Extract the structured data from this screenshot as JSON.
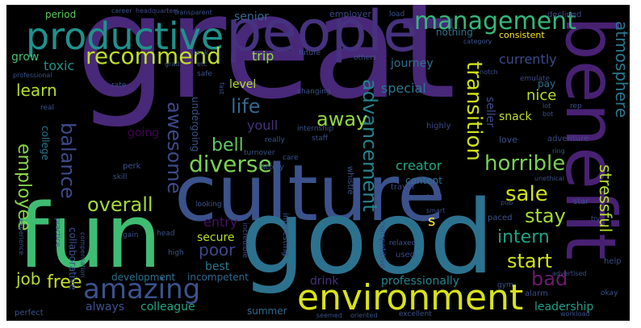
{
  "word_cloud": {
    "background": "#000000",
    "words": [
      {
        "id": "great",
        "text": "great",
        "color": "#482878"
      },
      {
        "id": "culture",
        "text": "culture",
        "color": "#3b528b"
      },
      {
        "id": "good",
        "text": "good",
        "color": "#2c728e"
      },
      {
        "id": "fun",
        "text": "fun",
        "color": "#3fbc73"
      },
      {
        "id": "benefit",
        "text": "benefit",
        "color": "#482173"
      },
      {
        "id": "people",
        "text": "people",
        "color": "#46327e"
      },
      {
        "id": "productive",
        "text": "productive",
        "color": "#21918c"
      },
      {
        "id": "environment",
        "text": "environment",
        "color": "#d8e219"
      },
      {
        "id": "amazing",
        "text": "amazing",
        "color": "#3b528b"
      },
      {
        "id": "management",
        "text": "management",
        "color": "#35b779"
      },
      {
        "id": "recommend",
        "text": "recommend",
        "color": "#c0df25"
      },
      {
        "id": "diverse",
        "text": "diverse",
        "color": "#7ad151"
      },
      {
        "id": "advancement",
        "text": "advancement",
        "color": "#26828e"
      },
      {
        "id": "transition",
        "text": "transition",
        "color": "#d0e11c"
      },
      {
        "id": "atmosphere",
        "text": "atmosphere",
        "color": "#2a788e"
      },
      {
        "id": "stressful",
        "text": "stressful",
        "color": "#b5de2b"
      },
      {
        "id": "horrible",
        "text": "horrible",
        "color": "#7ad151"
      },
      {
        "id": "awesome",
        "text": "awesome",
        "color": "#3e4989"
      },
      {
        "id": "balance",
        "text": "balance",
        "color": "#3e4a89"
      },
      {
        "id": "employee",
        "text": "employee",
        "color": "#86d549"
      },
      {
        "id": "overall",
        "text": "overall",
        "color": "#a2da37"
      },
      {
        "id": "sale",
        "text": "sale",
        "color": "#d2e21b"
      },
      {
        "id": "stay",
        "text": "stay",
        "color": "#a5db36"
      },
      {
        "id": "intern",
        "text": "intern",
        "color": "#1fa187"
      },
      {
        "id": "start",
        "text": "start",
        "color": "#d2e21b"
      },
      {
        "id": "bad",
        "text": "bad",
        "color": "#6b1a6c"
      },
      {
        "id": "away",
        "text": "away",
        "color": "#95d840"
      },
      {
        "id": "life",
        "text": "life",
        "color": "#31688e"
      },
      {
        "id": "bell",
        "text": "bell",
        "color": "#5ec962"
      },
      {
        "id": "learn",
        "text": "learn",
        "color": "#b5de2b"
      },
      {
        "id": "free",
        "text": "free",
        "color": "#c8e020"
      },
      {
        "id": "job",
        "text": "job",
        "color": "#b8de29"
      },
      {
        "id": "poor",
        "text": "poor",
        "color": "#3e4989"
      },
      {
        "id": "trip",
        "text": "trip",
        "color": "#90d743"
      },
      {
        "id": "journey",
        "text": "journey",
        "color": "#2c728e"
      },
      {
        "id": "currently",
        "text": "currently",
        "color": "#3e4989"
      },
      {
        "id": "special",
        "text": "special",
        "color": "#2a788e"
      },
      {
        "id": "nice",
        "text": "nice",
        "color": "#b5de2b"
      },
      {
        "id": "snack",
        "text": "snack",
        "color": "#bddf26"
      },
      {
        "id": "youll",
        "text": "youll",
        "color": "#46327e"
      },
      {
        "id": "creator",
        "text": "creator",
        "color": "#22a884"
      },
      {
        "id": "professionally",
        "text": "professionally",
        "color": "#25848e"
      },
      {
        "id": "leadership",
        "text": "leadership",
        "color": "#1f9e89"
      },
      {
        "id": "drink",
        "text": "drink",
        "color": "#46327e"
      },
      {
        "id": "summer",
        "text": "summer",
        "color": "#31688e"
      },
      {
        "id": "colleague",
        "text": "colleague",
        "color": "#20a486"
      },
      {
        "id": "always",
        "text": "always",
        "color": "#3b528b"
      },
      {
        "id": "best",
        "text": "best",
        "color": "#2a788e"
      },
      {
        "id": "secure",
        "text": "secure",
        "color": "#b5de2b"
      },
      {
        "id": "entry",
        "text": "entry",
        "color": "#471063"
      },
      {
        "id": "going",
        "text": "going",
        "color": "#440154"
      },
      {
        "id": "level",
        "text": "level",
        "color": "#b5de2b"
      },
      {
        "id": "senior",
        "text": "senior",
        "color": "#31688e"
      },
      {
        "id": "grow",
        "text": "grow",
        "color": "#44bf70"
      },
      {
        "id": "toxic",
        "text": "toxic",
        "color": "#21918c"
      },
      {
        "id": "period",
        "text": "period",
        "color": "#5ec962"
      },
      {
        "id": "nothing",
        "text": "nothing",
        "color": "#2c728e"
      },
      {
        "id": "consistent",
        "text": "consistent",
        "color": "#fde725"
      },
      {
        "id": "college",
        "text": "college",
        "color": "#2a788e"
      },
      {
        "id": "undergoing",
        "text": "undergoing",
        "color": "#3b528b"
      },
      {
        "id": "content",
        "text": "content",
        "color": "#2c728e"
      },
      {
        "id": "development",
        "text": "development",
        "color": "#2c728e"
      },
      {
        "id": "incompetent",
        "text": "incompetent",
        "color": "#31688e"
      },
      {
        "id": "collaborative",
        "text": "collaborative",
        "color": "#3b528b"
      },
      {
        "id": "pay",
        "text": "pay",
        "color": "#2c728e"
      },
      {
        "id": "seller",
        "text": "seller",
        "color": "#3e4989"
      },
      {
        "id": "employer",
        "text": "employer",
        "color": "#3e4989"
      },
      {
        "id": "declined",
        "text": "declined",
        "color": "#3e4989"
      },
      {
        "id": "emulate",
        "text": "emulate",
        "color": "#3e4989"
      },
      {
        "id": "highly",
        "text": "highly",
        "color": "#3e4989"
      },
      {
        "id": "love",
        "text": "love",
        "color": "#3b528b"
      },
      {
        "id": "adventure",
        "text": "adventure",
        "color": "#3e4989"
      },
      {
        "id": "s",
        "text": "s",
        "color": "#fde725"
      },
      {
        "id": "competitive",
        "text": "competitive",
        "color": "#3e4989"
      },
      {
        "id": "interesting",
        "text": "interesting",
        "color": "#3b528b"
      },
      {
        "id": "whistle",
        "text": "whistle",
        "color": "#3b528b"
      },
      {
        "id": "used",
        "text": "used",
        "color": "#3e4989"
      },
      {
        "id": "relaxed",
        "text": "relaxed",
        "color": "#3b528b"
      },
      {
        "id": "paced",
        "text": "paced",
        "color": "#3b528b"
      },
      {
        "id": "food",
        "text": "food",
        "color": "#3e4989"
      },
      {
        "id": "travel",
        "text": "travel",
        "color": "#3e4989"
      },
      {
        "id": "perk",
        "text": "perk",
        "color": "#3b528b"
      },
      {
        "id": "skill",
        "text": "skill",
        "color": "#3b528b"
      },
      {
        "id": "perfect",
        "text": "perfect",
        "color": "#3b528b"
      },
      {
        "id": "excellent",
        "text": "excellent",
        "color": "#3b528b"
      },
      {
        "id": "help",
        "text": "help",
        "color": "#3e4989"
      },
      {
        "id": "star",
        "text": "star",
        "color": "#3e4989"
      },
      {
        "id": "alarm",
        "text": "alarm",
        "color": "#3e4989"
      },
      {
        "id": "okay",
        "text": "okay",
        "color": "#3b528b"
      },
      {
        "id": "real",
        "text": "real",
        "color": "#3b528b"
      },
      {
        "id": "safe",
        "text": "safe",
        "color": "#3b528b"
      },
      {
        "id": "rate",
        "text": "rate",
        "color": "#3b528b"
      },
      {
        "id": "lack",
        "text": "lack",
        "color": "#3b528b"
      },
      {
        "id": "future",
        "text": "future",
        "color": "#3b528b"
      },
      {
        "id": "others",
        "text": "others",
        "color": "#3b528b"
      },
      {
        "id": "load",
        "text": "load",
        "color": "#3b528b"
      },
      {
        "id": "category",
        "text": "category",
        "color": "#3b528b"
      },
      {
        "id": "notch",
        "text": "notch",
        "color": "#3b528b"
      },
      {
        "id": "career",
        "text": "career",
        "color": "#3b528b"
      },
      {
        "id": "headquarters",
        "text": "headquarters",
        "color": "#3e4989"
      },
      {
        "id": "transparent",
        "text": "transparent",
        "color": "#3b528b"
      },
      {
        "id": "professional",
        "text": "professional",
        "color": "#3b528b"
      },
      {
        "id": "changing",
        "text": "changing",
        "color": "#3b528b"
      },
      {
        "id": "staff",
        "text": "staff",
        "color": "#3b528b"
      },
      {
        "id": "internship",
        "text": "internship",
        "color": "#3b528b"
      },
      {
        "id": "really",
        "text": "really",
        "color": "#3b528b"
      },
      {
        "id": "turnover",
        "text": "turnover",
        "color": "#3b528b"
      },
      {
        "id": "care",
        "text": "care",
        "color": "#3b528b"
      },
      {
        "id": "factory",
        "text": "factory",
        "color": "#3b528b"
      },
      {
        "id": "looking",
        "text": "looking",
        "color": "#3b528b"
      },
      {
        "id": "gain",
        "text": "gain",
        "color": "#3b528b"
      },
      {
        "id": "head",
        "text": "head",
        "color": "#3b528b"
      },
      {
        "id": "high",
        "text": "high",
        "color": "#3b528b"
      },
      {
        "id": "incredible",
        "text": "incredible",
        "color": "#3b528b"
      },
      {
        "id": "practice",
        "text": "practice",
        "color": "#3b528b"
      },
      {
        "id": "compensation",
        "text": "compensation",
        "color": "#3b528b"
      },
      {
        "id": "experience",
        "text": "experience",
        "color": "#3b528b"
      },
      {
        "id": "advertised",
        "text": "advertised",
        "color": "#3b528b"
      },
      {
        "id": "gym",
        "text": "gym",
        "color": "#3b528b"
      },
      {
        "id": "smart",
        "text": "smart",
        "color": "#3b528b"
      },
      {
        "id": "pub",
        "text": "pub",
        "color": "#3b528b"
      },
      {
        "id": "seemed",
        "text": "seemed",
        "color": "#3b528b"
      },
      {
        "id": "oriented",
        "text": "oriented",
        "color": "#3b528b"
      },
      {
        "id": "unethical",
        "text": "unethical",
        "color": "#3b528b"
      },
      {
        "id": "ring",
        "text": "ring",
        "color": "#3b528b"
      },
      {
        "id": "rep",
        "text": "rep",
        "color": "#3b528b"
      },
      {
        "id": "fast",
        "text": "fast",
        "color": "#3b528b"
      },
      {
        "id": "grad",
        "text": "grad",
        "color": "#3b528b"
      },
      {
        "id": "lot",
        "text": "lot",
        "color": "#3b528b"
      },
      {
        "id": "bot",
        "text": "bot",
        "color": "#3b528b"
      },
      {
        "id": "etc",
        "text": "etc",
        "color": "#3b528b"
      },
      {
        "id": "try",
        "text": "try",
        "color": "#3b528b"
      },
      {
        "id": "workload",
        "text": "workload",
        "color": "#3b528b"
      }
    ]
  }
}
